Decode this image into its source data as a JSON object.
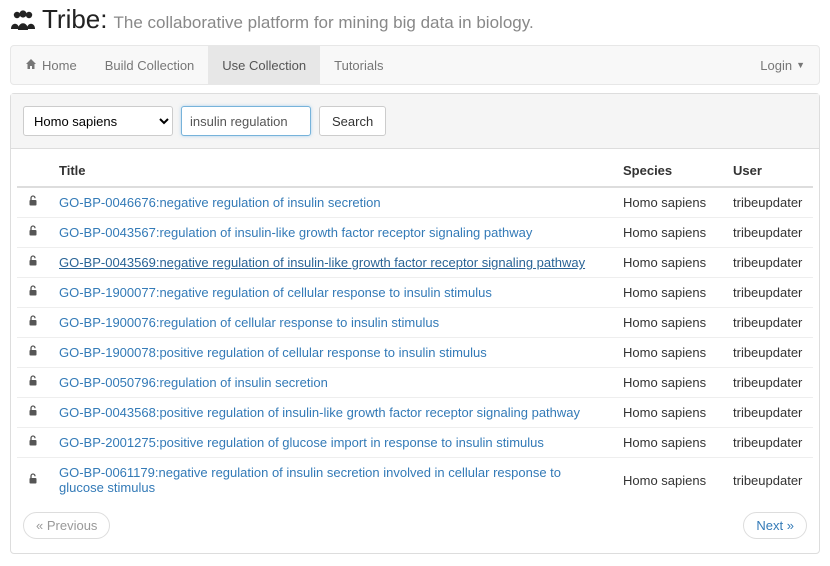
{
  "brand": {
    "title": "Tribe:",
    "tagline": "The collaborative platform for mining big data in biology."
  },
  "nav": {
    "items": [
      {
        "label": "Home",
        "icon": "home",
        "active": false
      },
      {
        "label": "Build Collection",
        "active": false
      },
      {
        "label": "Use Collection",
        "active": true
      },
      {
        "label": "Tutorials",
        "active": false
      }
    ],
    "login_label": "Login"
  },
  "search": {
    "species_selected": "Homo sapiens",
    "query_value": "insulin regulation",
    "button_label": "Search"
  },
  "table": {
    "headers": {
      "title": "Title",
      "species": "Species",
      "user": "User"
    },
    "rows": [
      {
        "title": "GO-BP-0046676:negative regulation of insulin secretion",
        "species": "Homo sapiens",
        "user": "tribeupdater",
        "hover": false
      },
      {
        "title": "GO-BP-0043567:regulation of insulin-like growth factor receptor signaling pathway",
        "species": "Homo sapiens",
        "user": "tribeupdater",
        "hover": false
      },
      {
        "title": "GO-BP-0043569:negative regulation of insulin-like growth factor receptor signaling pathway",
        "species": "Homo sapiens",
        "user": "tribeupdater",
        "hover": true
      },
      {
        "title": "GO-BP-1900077:negative regulation of cellular response to insulin stimulus",
        "species": "Homo sapiens",
        "user": "tribeupdater",
        "hover": false
      },
      {
        "title": "GO-BP-1900076:regulation of cellular response to insulin stimulus",
        "species": "Homo sapiens",
        "user": "tribeupdater",
        "hover": false
      },
      {
        "title": "GO-BP-1900078:positive regulation of cellular response to insulin stimulus",
        "species": "Homo sapiens",
        "user": "tribeupdater",
        "hover": false
      },
      {
        "title": "GO-BP-0050796:regulation of insulin secretion",
        "species": "Homo sapiens",
        "user": "tribeupdater",
        "hover": false
      },
      {
        "title": "GO-BP-0043568:positive regulation of insulin-like growth factor receptor signaling pathway",
        "species": "Homo sapiens",
        "user": "tribeupdater",
        "hover": false
      },
      {
        "title": "GO-BP-2001275:positive regulation of glucose import in response to insulin stimulus",
        "species": "Homo sapiens",
        "user": "tribeupdater",
        "hover": false
      },
      {
        "title": "GO-BP-0061179:negative regulation of insulin secretion involved in cellular response to glucose stimulus",
        "species": "Homo sapiens",
        "user": "tribeupdater",
        "hover": false
      }
    ]
  },
  "pager": {
    "prev": "« Previous",
    "next": "Next »"
  },
  "colors": {
    "link": "#337ab7",
    "link_hover": "#2a6496",
    "nav_bg": "#f8f8f8",
    "nav_border": "#e7e7e7",
    "panel_border": "#ddd",
    "muted": "#888"
  }
}
